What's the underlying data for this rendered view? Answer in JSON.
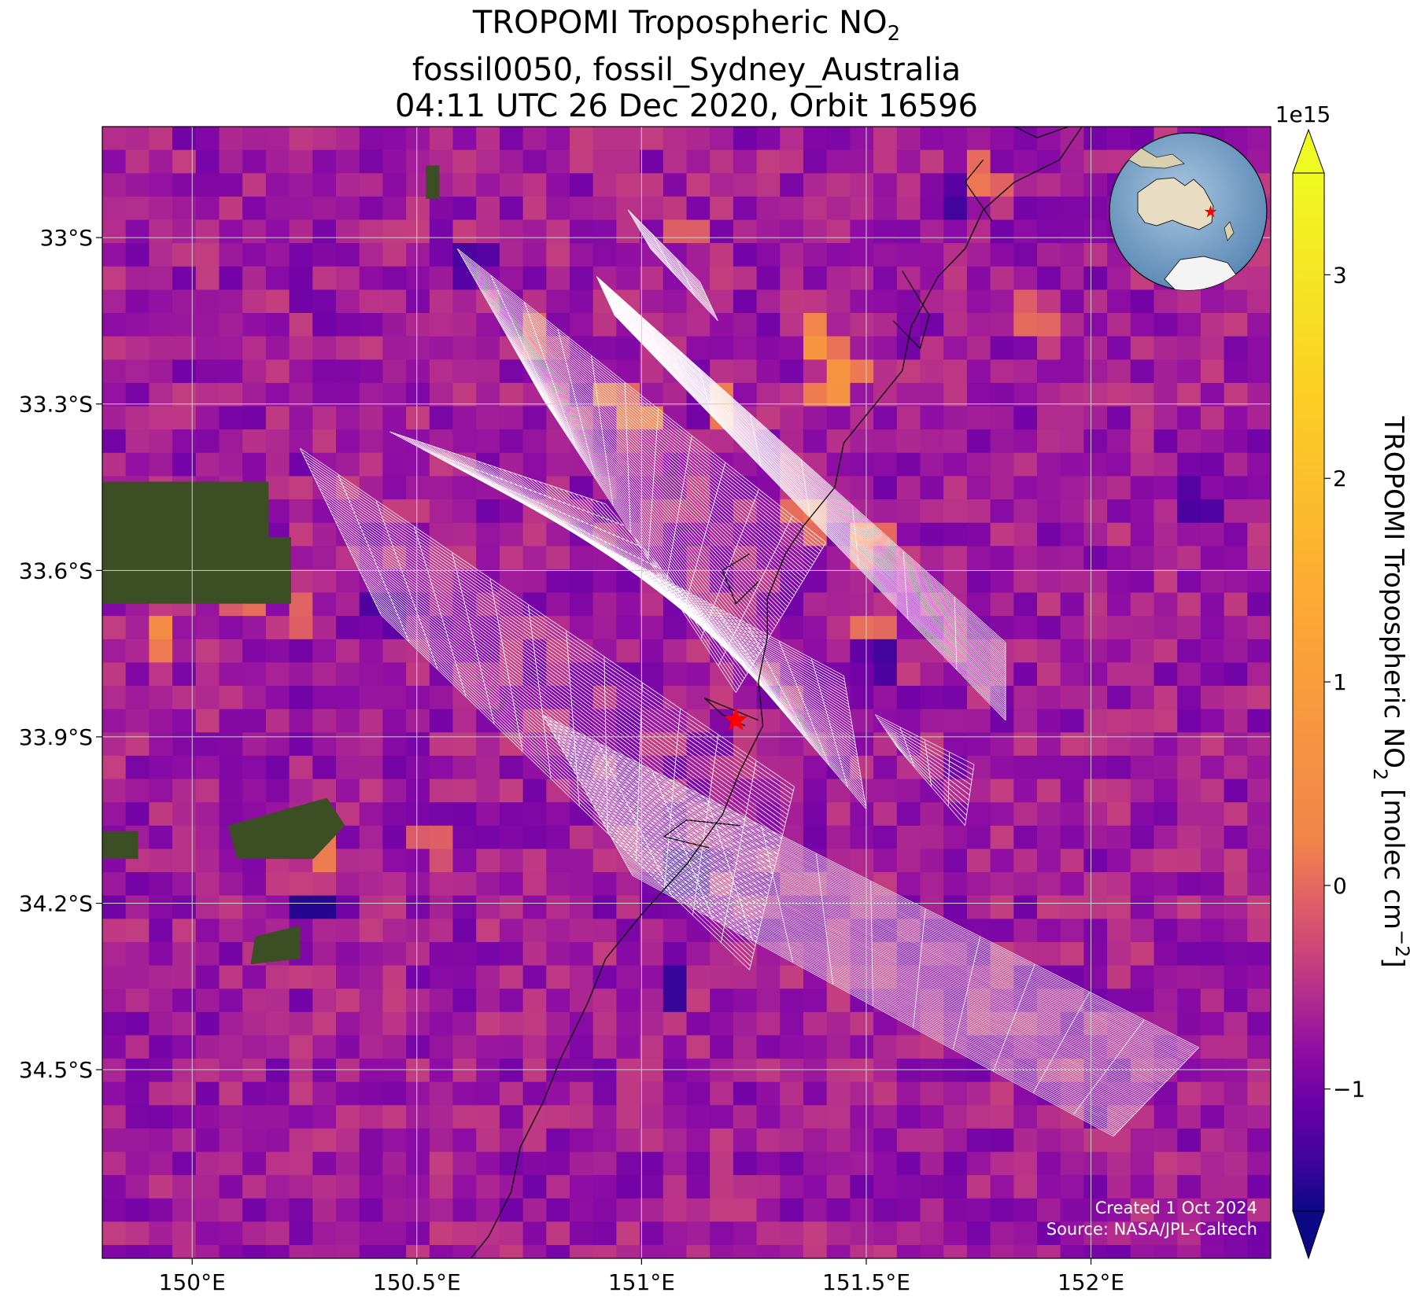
{
  "title": {
    "line1_prefix": "TROPOMI Tropospheric NO",
    "line1_subscript": "2",
    "line2": "fossil0050, fossil_Sydney_Australia",
    "line3": "04:11 UTC 26 Dec 2020, Orbit 16596"
  },
  "map": {
    "lon_range": [
      149.8,
      152.4
    ],
    "lat_range": [
      -34.84,
      -32.8
    ],
    "grid": true,
    "x_ticks": [
      {
        "value": 150.0,
        "label": "150°E"
      },
      {
        "value": 150.5,
        "label": "150.5°E"
      },
      {
        "value": 151.0,
        "label": "151°E"
      },
      {
        "value": 151.5,
        "label": "151.5°E"
      },
      {
        "value": 152.0,
        "label": "152°E"
      }
    ],
    "y_ticks": [
      {
        "value": -33.0,
        "label": "33°S"
      },
      {
        "value": -33.3,
        "label": "33.3°S"
      },
      {
        "value": -33.6,
        "label": "33.6°S"
      },
      {
        "value": -33.9,
        "label": "33.9°S"
      },
      {
        "value": -34.2,
        "label": "34.2°S"
      },
      {
        "value": -34.5,
        "label": "34.5°S"
      }
    ],
    "site_marker": {
      "lon": 151.21,
      "lat": -33.87,
      "color": "#ff0000",
      "icon": "star"
    },
    "credits": {
      "created": "Created 1 Oct 2024",
      "source": "Source: NASA/JPL-Caltech"
    },
    "colors": {
      "coastline": "#000000",
      "gridline": "#d0d0d0",
      "target_grid": "#ffffff",
      "land": "#3c4f24"
    },
    "inset_globe": {
      "icon": "globe-australia",
      "marker_color": "#ff0000"
    }
  },
  "colorbar": {
    "colormap": "plasma",
    "range": [
      -1.6,
      3.5
    ],
    "extend": "both",
    "multiplier": "1e15",
    "ticks": [
      {
        "value": -1,
        "label": "−1"
      },
      {
        "value": 0,
        "label": "0"
      },
      {
        "value": 1,
        "label": "1"
      },
      {
        "value": 2,
        "label": "2"
      },
      {
        "value": 3,
        "label": "3"
      }
    ],
    "label_prefix": "TROPOMI Tropospheric NO",
    "label_subscript": "2",
    "label_suffix": " [molec cm",
    "label_superscript": "−2",
    "label_end": "]"
  },
  "chart_data": {
    "type": "heatmap",
    "description_units": "molec cm^-2 (x1e15)",
    "grid_lon_step": 0.052,
    "grid_lat_step": 0.042,
    "hotspots": [
      {
        "lon": 151.38,
        "lat": -33.19,
        "value": 3.2
      },
      {
        "lon": 151.46,
        "lat": -33.23,
        "value": 3.0
      },
      {
        "lon": 151.43,
        "lat": -33.28,
        "value": 3.1
      },
      {
        "lon": 151.17,
        "lat": -33.3,
        "value": 3.0
      },
      {
        "lon": 151.0,
        "lat": -33.33,
        "value": 3.0
      },
      {
        "lon": 150.93,
        "lat": -33.28,
        "value": 2.8
      },
      {
        "lon": 149.93,
        "lat": -33.71,
        "value": 3.0
      },
      {
        "lon": 150.28,
        "lat": -34.1,
        "value": 3.0
      },
      {
        "lon": 151.76,
        "lat": -32.9,
        "value": 2.7
      },
      {
        "lon": 151.87,
        "lat": -33.15,
        "value": 2.5
      },
      {
        "lon": 151.37,
        "lat": -33.5,
        "value": 2.8
      },
      {
        "lon": 151.5,
        "lat": -33.54,
        "value": 2.8
      },
      {
        "lon": 151.5,
        "lat": -33.71,
        "value": 2.6
      },
      {
        "lon": 150.13,
        "lat": -33.66,
        "value": 2.5
      },
      {
        "lon": 150.24,
        "lat": -33.68,
        "value": 2.4
      },
      {
        "lon": 150.54,
        "lat": -34.09,
        "value": 2.2
      },
      {
        "lon": 150.77,
        "lat": -33.17,
        "value": 2.4
      },
      {
        "lon": 151.1,
        "lat": -32.99,
        "value": 2.3
      }
    ],
    "coldspots": [
      {
        "lon": 150.27,
        "lat": -34.21,
        "value": -1.5
      },
      {
        "lon": 151.07,
        "lat": -34.35,
        "value": -1.3
      },
      {
        "lon": 151.1,
        "lat": -34.14,
        "value": -1.2
      },
      {
        "lon": 151.53,
        "lat": -33.76,
        "value": -1.1
      },
      {
        "lon": 150.62,
        "lat": -33.04,
        "value": -1.0
      },
      {
        "lon": 151.7,
        "lat": -32.94,
        "value": -1.0
      },
      {
        "lon": 149.84,
        "lat": -33.51,
        "value": -1.0
      },
      {
        "lon": 150.43,
        "lat": -33.67,
        "value": -0.9
      },
      {
        "lon": 152.23,
        "lat": -33.48,
        "value": -0.9
      }
    ]
  }
}
